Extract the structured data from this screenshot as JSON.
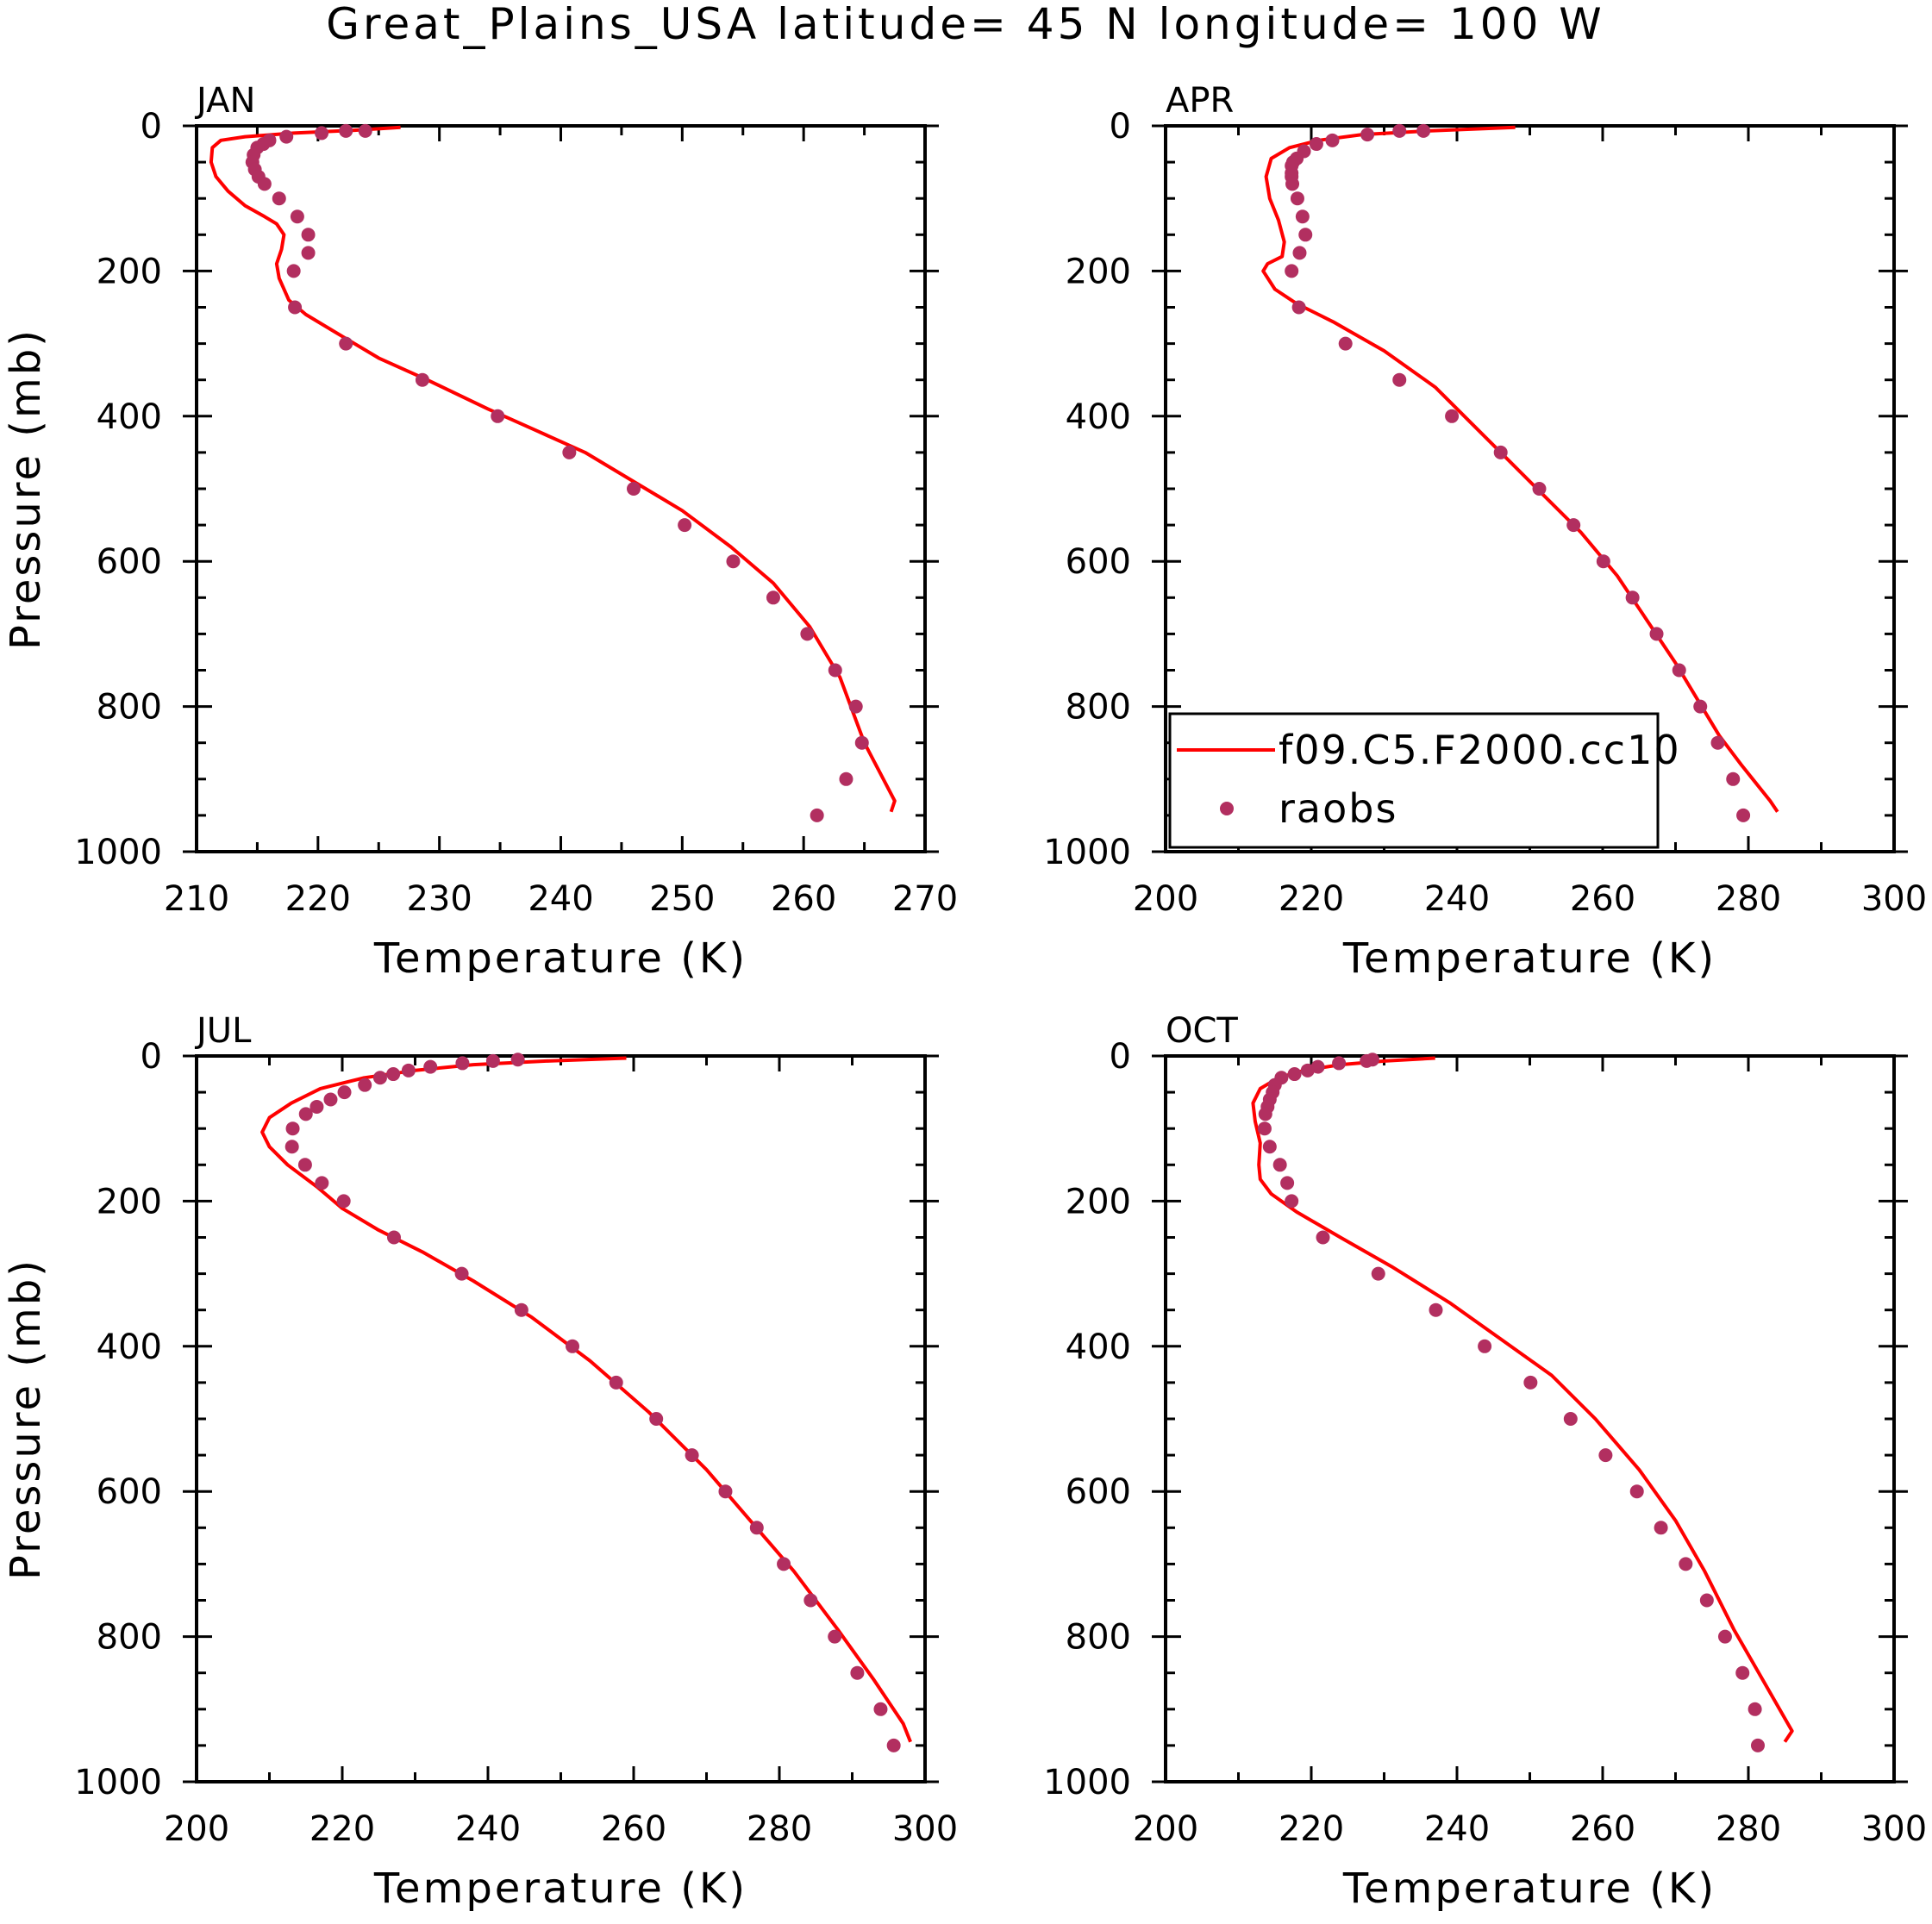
{
  "figure": {
    "title": "Great_Plains_USA  latitude= 45 N longitude= 100 W",
    "colors": {
      "model": "#ff0000",
      "obs": "#b22f60",
      "axes": "#000000"
    },
    "legend": {
      "model_label": "f09.C5.F2000.cc10",
      "obs_label": "raobs",
      "panel": "APR",
      "placement": "lower-left"
    }
  },
  "chart_data": [
    {
      "type": "line",
      "title": "JAN",
      "xlabel": "Temperature (K)",
      "ylabel": "Pressure (mb)",
      "xlim": [
        210,
        270
      ],
      "ylim": [
        1000,
        0
      ],
      "yinverted": true,
      "xticks": [
        210,
        220,
        230,
        240,
        250,
        260,
        270
      ],
      "yticks": [
        0,
        200,
        400,
        600,
        800,
        1000
      ],
      "series": [
        {
          "name": "f09.C5.F2000.cc10",
          "kind": "line",
          "x": [
            226.8,
            223.0,
            218.0,
            214.0,
            212.0,
            211.3,
            211.2,
            211.6,
            212.6,
            214.0,
            215.6,
            216.6,
            217.2,
            217.0,
            216.6,
            216.8,
            217.6,
            219.0,
            222.0,
            225.0,
            229.0,
            234.0,
            238.0,
            242.0,
            246.0,
            250.0,
            254.0,
            257.5,
            260.5,
            263.0,
            265.0,
            267.5,
            267.2
          ],
          "y": [
            2,
            6,
            10,
            15,
            20,
            30,
            50,
            70,
            90,
            110,
            125,
            135,
            150,
            170,
            190,
            210,
            240,
            260,
            290,
            320,
            350,
            390,
            420,
            450,
            490,
            530,
            580,
            630,
            690,
            760,
            850,
            930,
            945
          ]
        },
        {
          "name": "raobs",
          "kind": "scatter",
          "x": [
            223.9,
            222.3,
            220.3,
            217.4,
            216.0,
            215.5,
            215.0,
            214.7,
            214.6,
            214.8,
            215.1,
            215.6,
            216.8,
            218.3,
            219.2,
            219.2,
            218.0,
            218.1,
            222.3,
            228.6,
            234.8,
            240.7,
            246.0,
            250.2,
            254.2,
            257.5,
            260.3,
            262.6,
            264.3,
            264.8,
            263.5,
            261.1
          ],
          "y": [
            7,
            7,
            10,
            15,
            20,
            25,
            30,
            40,
            50,
            60,
            70,
            80,
            100,
            125,
            150,
            175,
            200,
            250,
            300,
            350,
            400,
            450,
            500,
            550,
            600,
            650,
            700,
            750,
            800,
            850,
            900,
            950
          ]
        }
      ]
    },
    {
      "type": "line",
      "title": "APR",
      "xlabel": "Temperature (K)",
      "ylabel": "",
      "xlim": [
        200,
        300
      ],
      "ylim": [
        1000,
        0
      ],
      "yinverted": true,
      "xticks": [
        200,
        220,
        240,
        260,
        280,
        300
      ],
      "yticks": [
        0,
        200,
        400,
        600,
        800,
        1000
      ],
      "series": [
        {
          "name": "f09.C5.F2000.cc10",
          "kind": "line",
          "x": [
            248.0,
            236.0,
            227.0,
            221.0,
            217.0,
            214.5,
            213.8,
            214.3,
            215.5,
            216.3,
            216.0,
            214.0,
            213.4,
            215.0,
            218.0,
            223.0,
            230.0,
            237.0,
            242.0,
            247.0,
            252.0,
            257.0,
            262.0,
            266.0,
            270.0,
            273.0,
            276.0,
            279.0,
            283.0,
            284.0
          ],
          "y": [
            2,
            7,
            12,
            20,
            30,
            45,
            70,
            100,
            130,
            160,
            180,
            190,
            200,
            225,
            245,
            270,
            310,
            360,
            410,
            460,
            510,
            560,
            620,
            680,
            740,
            790,
            840,
            880,
            930,
            945
          ]
        },
        {
          "name": "raobs",
          "kind": "scatter",
          "x": [
            235.4,
            232.1,
            227.7,
            222.9,
            220.7,
            219.0,
            218.0,
            217.5,
            217.3,
            217.3,
            217.3,
            217.4,
            218.1,
            218.8,
            219.2,
            218.4,
            217.3,
            218.3,
            224.7,
            232.1,
            239.3,
            246.0,
            251.3,
            256.0,
            260.1,
            264.1,
            267.4,
            270.5,
            273.4,
            275.8,
            277.9,
            279.3
          ],
          "y": [
            7,
            7,
            12,
            20,
            25,
            35,
            45,
            50,
            55,
            65,
            70,
            80,
            100,
            125,
            150,
            175,
            200,
            250,
            300,
            350,
            400,
            450,
            500,
            550,
            600,
            650,
            700,
            750,
            800,
            850,
            900,
            950
          ]
        }
      ]
    },
    {
      "type": "line",
      "title": "JUL",
      "xlabel": "Temperature (K)",
      "ylabel": "Pressure (mb)",
      "xlim": [
        200,
        300
      ],
      "ylim": [
        1000,
        0
      ],
      "yinverted": true,
      "xticks": [
        200,
        220,
        240,
        260,
        280,
        300
      ],
      "yticks": [
        0,
        200,
        400,
        600,
        800,
        1000
      ],
      "series": [
        {
          "name": "f09.C5.F2000.cc10",
          "kind": "line",
          "x": [
            259.0,
            248.0,
            238.0,
            230.0,
            223.0,
            217.0,
            213.0,
            210.0,
            209.0,
            210.0,
            212.5,
            216.5,
            220.0,
            225.0,
            231.0,
            238.0,
            246.0,
            254.0,
            262.0,
            270.0,
            276.0,
            282.0,
            288.0,
            293.0,
            297.0,
            298.0
          ],
          "y": [
            3,
            7,
            12,
            20,
            30,
            45,
            65,
            85,
            105,
            125,
            150,
            180,
            210,
            240,
            270,
            310,
            360,
            420,
            490,
            570,
            640,
            710,
            790,
            860,
            920,
            945
          ]
        },
        {
          "name": "raobs",
          "kind": "scatter",
          "x": [
            244.1,
            240.7,
            236.5,
            232.1,
            229.1,
            227.0,
            225.2,
            223.1,
            220.3,
            218.4,
            216.5,
            215.0,
            213.2,
            213.1,
            214.9,
            217.2,
            220.2,
            227.1,
            236.4,
            244.6,
            251.6,
            257.6,
            263.1,
            268.0,
            272.6,
            276.9,
            280.6,
            284.3,
            287.6,
            290.7,
            293.9,
            295.7
          ],
          "y": [
            5,
            7,
            10,
            15,
            20,
            25,
            30,
            40,
            50,
            60,
            70,
            80,
            100,
            125,
            150,
            175,
            200,
            250,
            300,
            350,
            400,
            450,
            500,
            550,
            600,
            650,
            700,
            750,
            800,
            850,
            900,
            950
          ]
        }
      ]
    },
    {
      "type": "line",
      "title": "OCT",
      "xlabel": "Temperature (K)",
      "ylabel": "",
      "xlim": [
        200,
        300
      ],
      "ylim": [
        1000,
        0
      ],
      "yinverted": true,
      "xticks": [
        200,
        220,
        240,
        260,
        280,
        300
      ],
      "yticks": [
        0,
        200,
        400,
        600,
        800,
        1000
      ],
      "series": [
        {
          "name": "f09.C5.F2000.cc10",
          "kind": "line",
          "x": [
            237.0,
            230.0,
            224.0,
            219.0,
            215.5,
            213.0,
            212.0,
            212.3,
            213.0,
            212.8,
            213.0,
            214.5,
            218.0,
            224.0,
            231.0,
            239.0,
            246.0,
            253.0,
            259.0,
            265.0,
            270.0,
            274.0,
            278.0,
            282.0,
            286.0,
            285.0
          ],
          "y": [
            3,
            7,
            12,
            20,
            30,
            45,
            65,
            90,
            120,
            150,
            170,
            190,
            215,
            250,
            290,
            340,
            390,
            440,
            500,
            570,
            640,
            710,
            790,
            860,
            930,
            945
          ]
        },
        {
          "name": "raobs",
          "kind": "scatter",
          "x": [
            228.4,
            227.6,
            223.8,
            220.9,
            219.5,
            217.7,
            215.9,
            215.0,
            214.7,
            214.3,
            214.0,
            213.7,
            213.6,
            214.3,
            215.7,
            216.7,
            217.3,
            221.6,
            229.2,
            237.1,
            243.8,
            250.1,
            255.6,
            260.4,
            264.7,
            268.0,
            271.4,
            274.3,
            276.8,
            279.2,
            280.9,
            281.3
          ],
          "y": [
            5,
            7,
            10,
            15,
            20,
            25,
            30,
            40,
            50,
            60,
            70,
            80,
            100,
            125,
            150,
            175,
            200,
            250,
            300,
            350,
            400,
            450,
            500,
            550,
            600,
            650,
            700,
            750,
            800,
            850,
            900,
            950
          ]
        }
      ]
    }
  ]
}
